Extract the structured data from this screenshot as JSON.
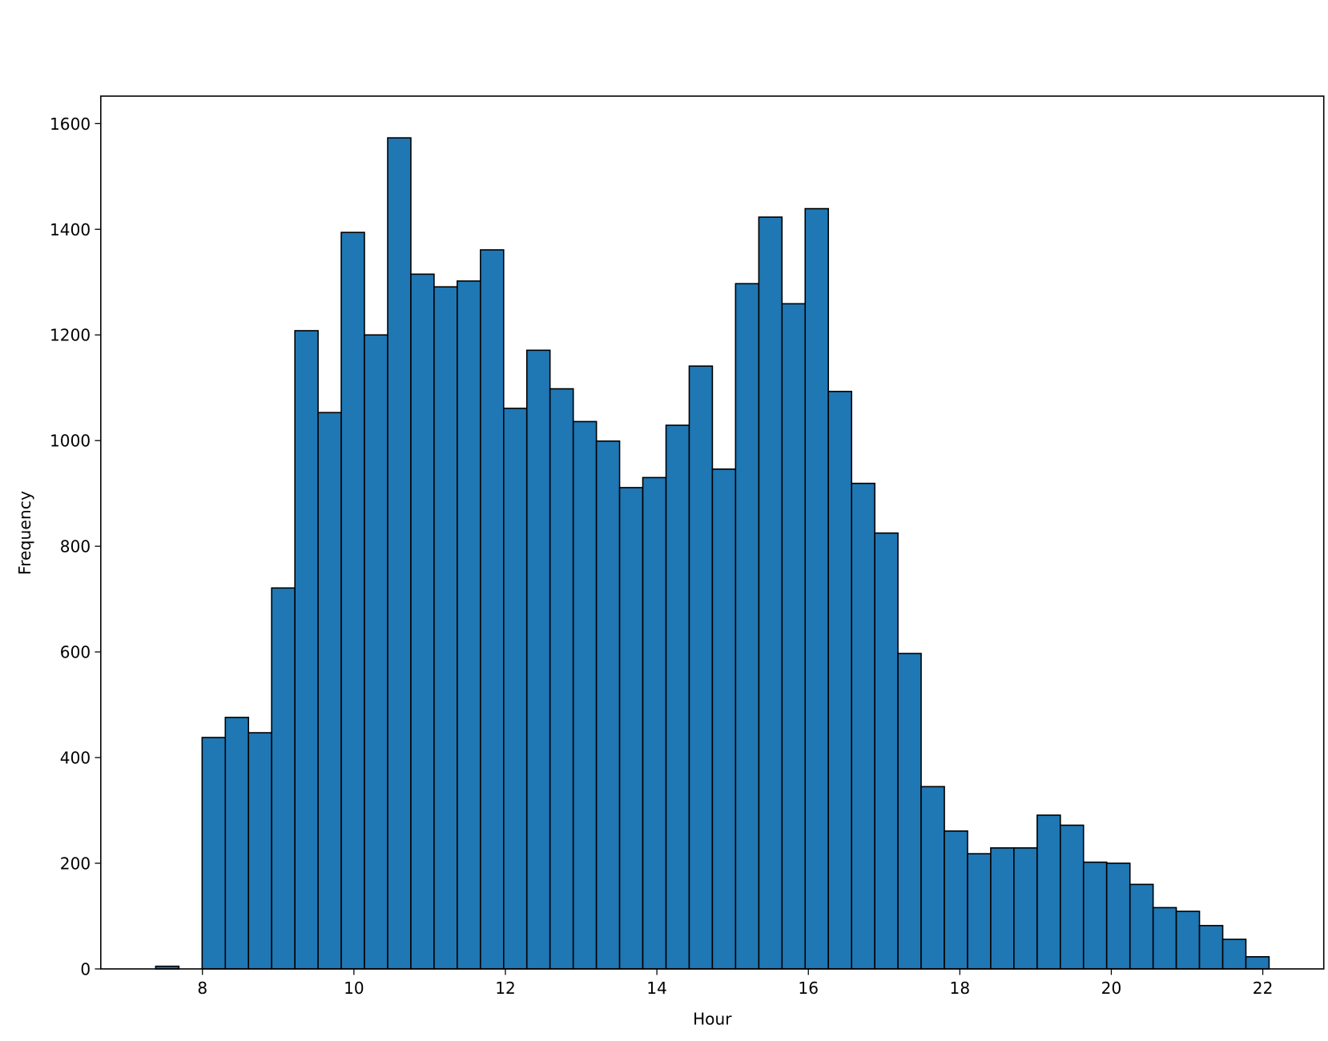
{
  "chart_data": {
    "type": "histogram",
    "x_label": "Hour",
    "y_label": "Frequency",
    "color": "#1f77b4",
    "edgecolor": "#000000",
    "bins": [
      7.383,
      7.689,
      7.996,
      8.302,
      8.608,
      8.914,
      9.221,
      9.527,
      9.833,
      10.139,
      10.446,
      10.752,
      11.058,
      11.364,
      11.671,
      11.977,
      12.283,
      12.589,
      12.896,
      13.202,
      13.508,
      13.814,
      14.121,
      14.427,
      14.733,
      15.039,
      15.346,
      15.652,
      15.958,
      16.264,
      16.571,
      16.877,
      17.183,
      17.489,
      17.796,
      18.102,
      18.408,
      18.714,
      19.021,
      19.327,
      19.633,
      19.939,
      20.246,
      20.552,
      20.858,
      21.164,
      21.471,
      21.777,
      22.083
    ],
    "values": [
      5,
      0,
      438,
      476,
      447,
      721,
      1208,
      1053,
      1394,
      1200,
      1573,
      1315,
      1291,
      1302,
      1361,
      1061,
      1171,
      1098,
      1036,
      999,
      911,
      930,
      1029,
      1141,
      946,
      1297,
      1423,
      1259,
      1439,
      1093,
      919,
      825,
      597,
      345,
      261,
      218,
      229,
      229,
      291,
      272,
      202,
      200,
      160,
      116,
      109,
      82,
      56,
      23
    ],
    "xlim": [
      6.658,
      22.805
    ],
    "ylim": [
      0,
      1652
    ],
    "xticks": [
      8,
      10,
      12,
      14,
      16,
      18,
      20,
      22
    ],
    "yticks": [
      0,
      200,
      400,
      600,
      800,
      1000,
      1200,
      1400,
      1600
    ]
  }
}
